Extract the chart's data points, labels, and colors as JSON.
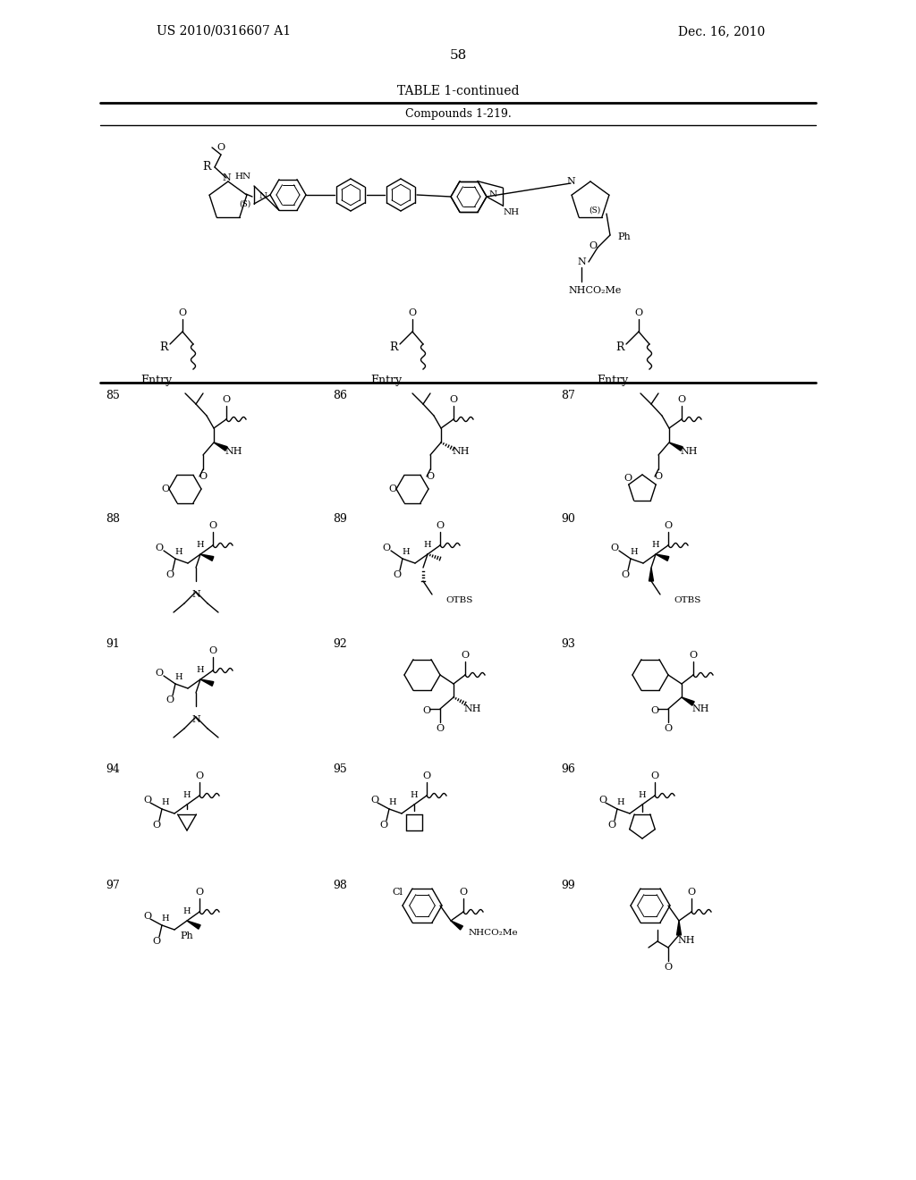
{
  "page_number": "58",
  "patent_number": "US 2010/0316607 A1",
  "patent_date": "Dec. 16, 2010",
  "table_title": "TABLE 1-continued",
  "table_subtitle": "Compounds 1-219.",
  "background_color": "#ffffff"
}
